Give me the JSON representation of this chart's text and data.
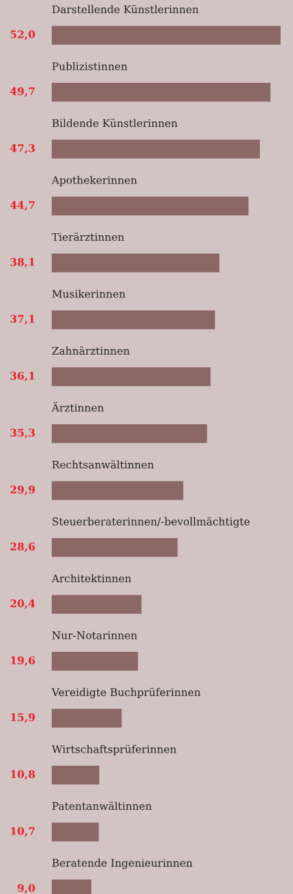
{
  "chart_data": {
    "type": "bar",
    "orientation": "horizontal",
    "categories": [
      "Darstellende Künstlerinnen",
      "Publizistinnen",
      "Bildende Künstlerinnen",
      "Apothekerinnen",
      "Tierärztinnen",
      "Musikerinnen",
      "Zahnärztinnen",
      "Ärztinnen",
      "Rechtsanwältinnen",
      "Steuerberaterinnen/-bevollmächtigte",
      "Architektinnen",
      "Nur-Notarinnen",
      "Vereidigte Buchprüferinnen",
      "Wirtschaftsprüferinnen",
      "Patentanwältinnen",
      "Beratende Ingenieurinnen"
    ],
    "values": [
      52.0,
      49.7,
      47.3,
      44.7,
      38.1,
      37.1,
      36.1,
      35.3,
      29.9,
      28.6,
      20.4,
      19.6,
      15.9,
      10.8,
      10.7,
      9.0
    ],
    "value_labels": [
      "52,0",
      "49,7",
      "47,3",
      "44,7",
      "38,1",
      "37,1",
      "36,1",
      "35,3",
      "29,9",
      "28,6",
      "20,4",
      "19,6",
      "15,9",
      "10,8",
      "10,7",
      "9,0"
    ],
    "color": "#8b6866"
  }
}
